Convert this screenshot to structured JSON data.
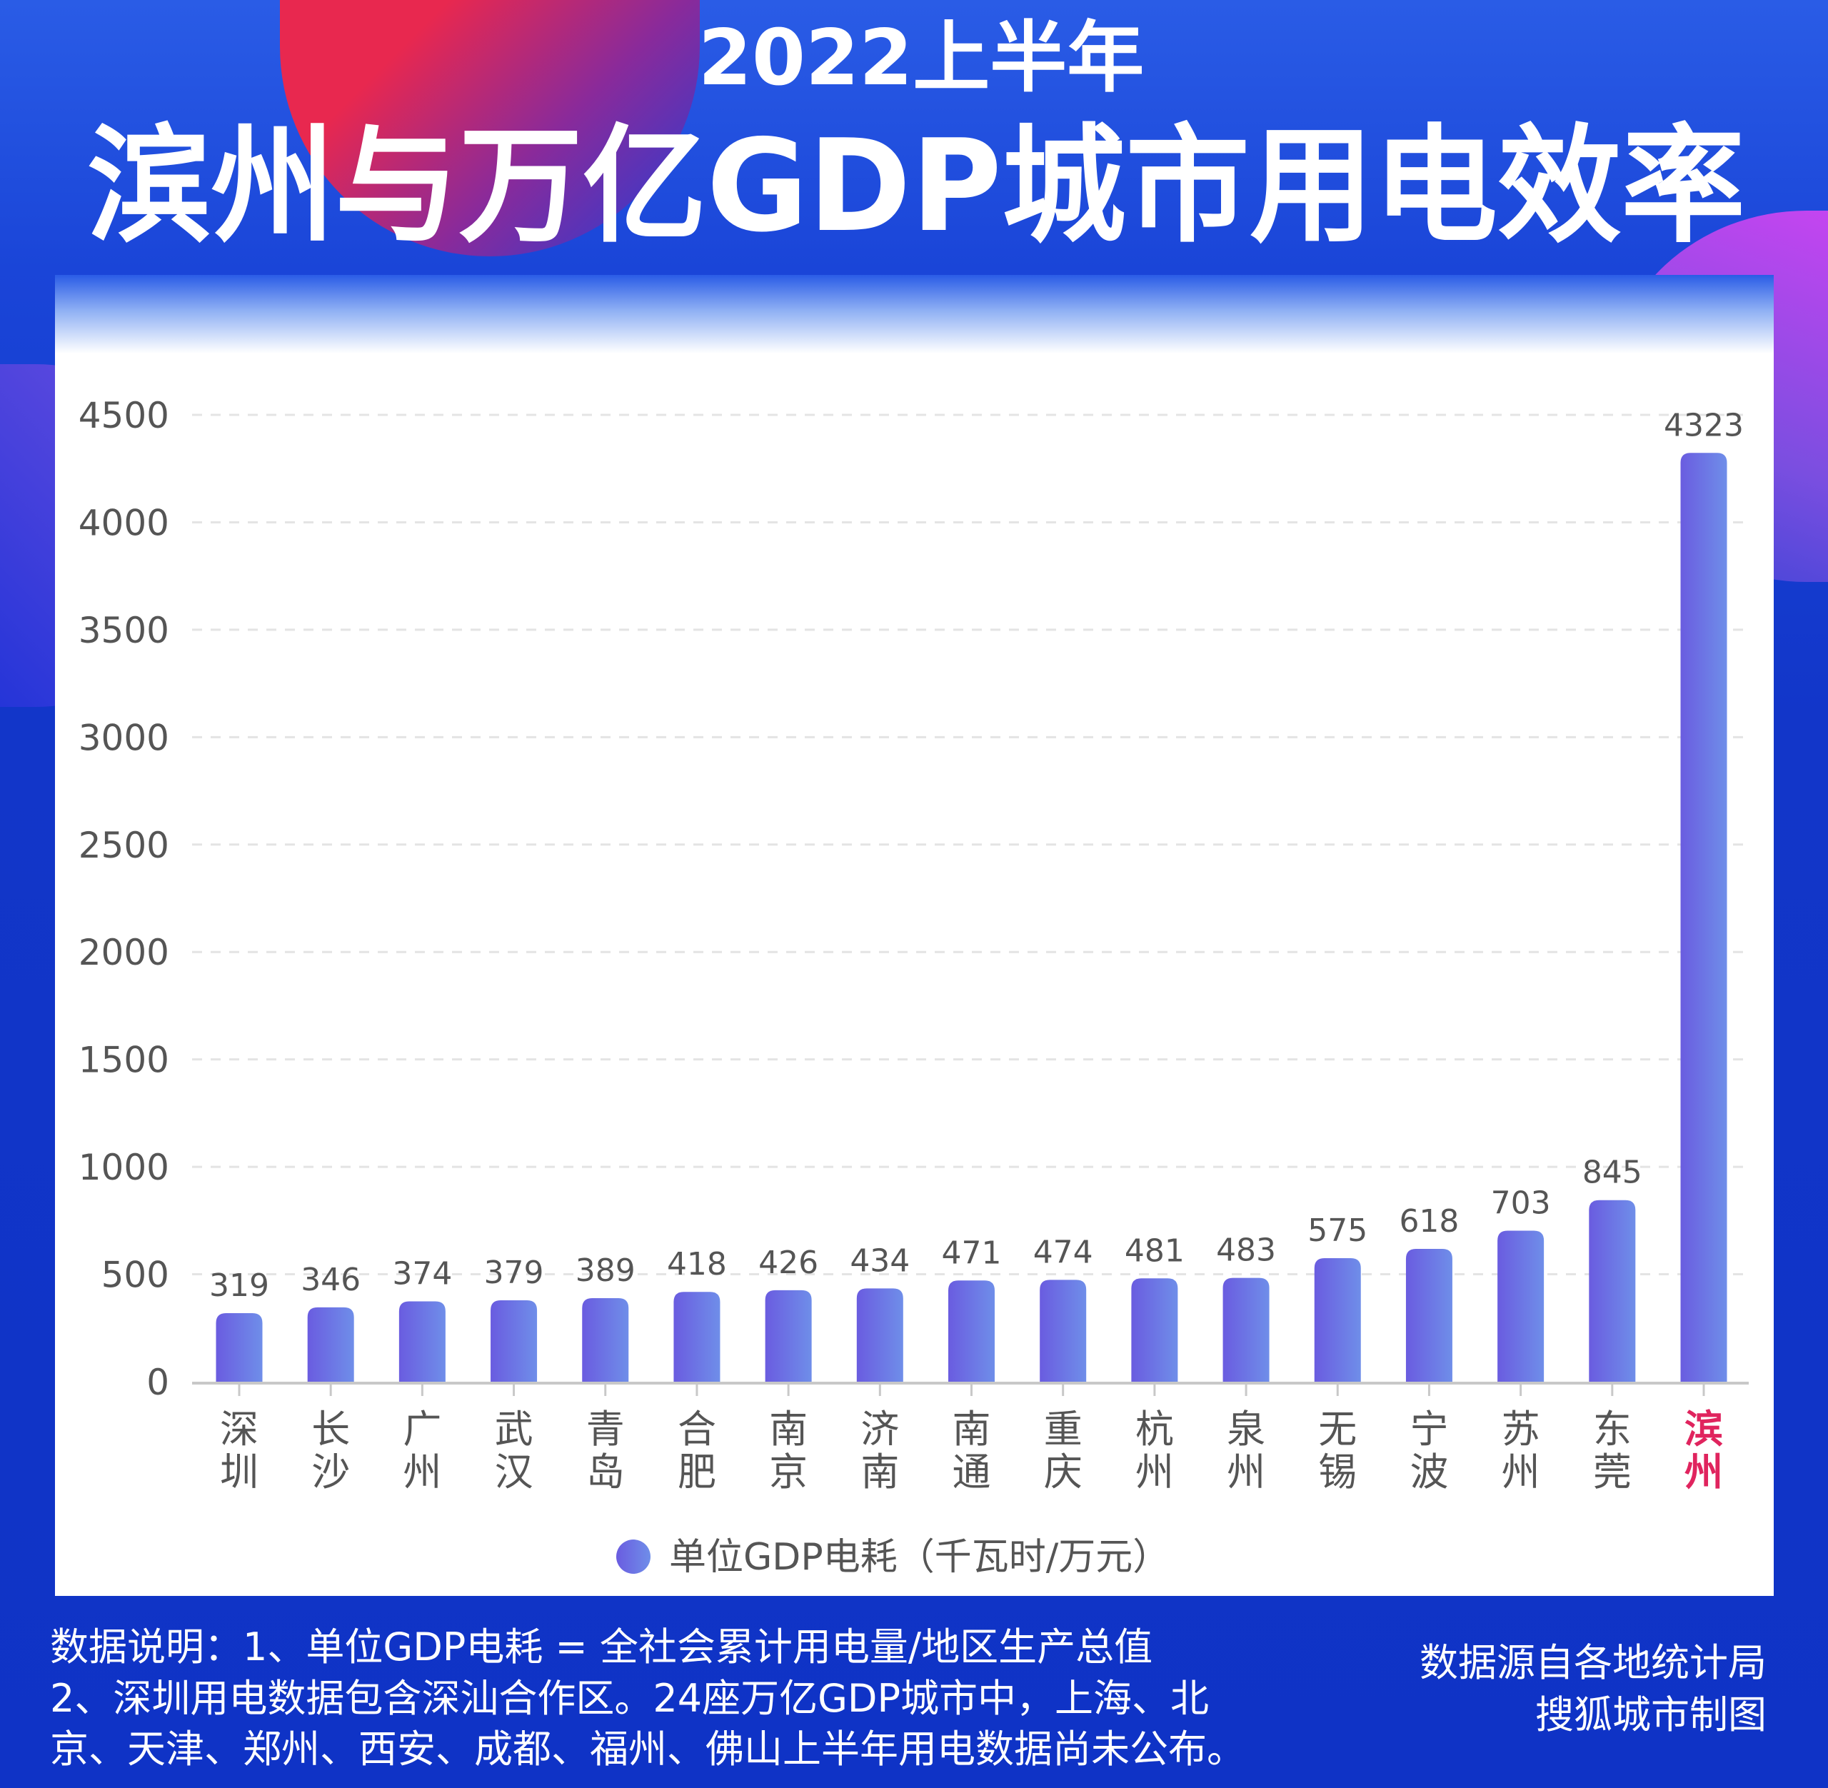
{
  "header": {
    "subtitle": "2022上半年",
    "title": "滨州与万亿GDP城市用电效率"
  },
  "colors": {
    "background": "#1236c9",
    "bar_start": "#6a5ce0",
    "bar_end": "#6f8ee9",
    "highlight_label": "#e0245e",
    "axis_text": "#555555"
  },
  "chart_data": {
    "type": "bar",
    "categories": [
      "深圳",
      "长沙",
      "广州",
      "武汉",
      "青岛",
      "合肥",
      "南京",
      "济南",
      "南通",
      "重庆",
      "杭州",
      "泉州",
      "无锡",
      "宁波",
      "苏州",
      "东莞",
      "滨州"
    ],
    "series": [
      {
        "name": "单位GDP电耗（千瓦时/万元）",
        "values": [
          319,
          346,
          374,
          379,
          389,
          418,
          426,
          434,
          471,
          474,
          481,
          483,
          575,
          618,
          703,
          845,
          4323
        ]
      }
    ],
    "highlight_category": "滨州",
    "ylim": [
      0,
      4500
    ],
    "yticks": [
      "0",
      "500",
      "1000",
      "1500",
      "2000",
      "2500",
      "3000",
      "3500",
      "4000",
      "4500"
    ],
    "grid": true,
    "legend_position": "bottom"
  },
  "footer": {
    "notes": [
      "数据说明：1、单位GDP电耗 = 全社会累计用电量/地区生产总值",
      "2、深圳用电数据包含深汕合作区。24座万亿GDP城市中，上海、北",
      "京、天津、郑州、西安、成都、福州、佛山上半年用电数据尚未公布。"
    ],
    "source": "数据源自各地统计局",
    "credit": "搜狐城市制图"
  }
}
